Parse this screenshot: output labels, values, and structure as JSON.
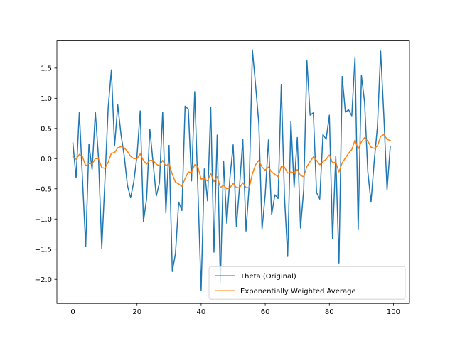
{
  "chart_data": {
    "type": "line",
    "title": "",
    "xlabel": "",
    "ylabel": "",
    "xlim": [
      -5,
      105
    ],
    "ylim": [
      -2.4,
      1.95
    ],
    "x_ticks": [
      0,
      20,
      40,
      60,
      80,
      100
    ],
    "y_ticks": [
      -2.0,
      -1.5,
      -1.0,
      -0.5,
      0.0,
      0.5,
      1.0,
      1.5
    ],
    "x_tick_labels": [
      "0",
      "20",
      "40",
      "60",
      "80",
      "100"
    ],
    "y_tick_labels": [
      "−2.0",
      "−1.5",
      "−1.0",
      "−0.5",
      "0.0",
      "0.5",
      "1.0",
      "1.5"
    ],
    "grid": false,
    "legend_position": "lower-right",
    "series": [
      {
        "name": "Theta (Original)",
        "color": "#1f77b4",
        "values": [
          0.26,
          -0.32,
          0.77,
          -0.35,
          -1.46,
          0.24,
          -0.18,
          0.77,
          0.0,
          -1.49,
          -0.35,
          0.84,
          1.47,
          0.21,
          0.89,
          0.4,
          0.05,
          -0.44,
          -0.65,
          -0.38,
          0.05,
          0.79,
          -1.04,
          -0.66,
          0.49,
          -0.06,
          -0.62,
          -0.4,
          0.77,
          -0.9,
          0.22,
          -1.87,
          -1.57,
          -0.72,
          -0.86,
          0.87,
          0.82,
          -0.37,
          1.11,
          -0.52,
          -2.18,
          -0.17,
          -0.7,
          0.85,
          -1.55,
          0.39,
          -2.05,
          -0.04,
          -1.07,
          -0.31,
          0.23,
          -1.13,
          -0.45,
          0.32,
          -1.2,
          -0.44,
          1.8,
          1.21,
          0.58,
          -1.17,
          -0.59,
          0.31,
          -0.93,
          -0.6,
          -0.66,
          1.23,
          -0.64,
          -1.62,
          0.62,
          -0.47,
          0.35,
          -1.15,
          -0.51,
          1.62,
          0.72,
          0.76,
          -0.56,
          -0.67,
          0.4,
          0.32,
          0.72,
          -1.33,
          0.04,
          -1.73,
          1.36,
          0.77,
          0.81,
          0.71,
          1.68,
          -1.18,
          1.38,
          0.93,
          -0.22,
          -0.72,
          -0.04,
          0.53,
          1.78,
          0.71,
          -0.52,
          0.2
        ]
      },
      {
        "name": "Exponentially Weighted Average",
        "color": "#ff7f0e",
        "values": [
          0.03,
          -0.01,
          0.07,
          0.03,
          -0.12,
          -0.08,
          -0.09,
          0.0,
          0.0,
          -0.15,
          -0.16,
          -0.06,
          0.09,
          0.1,
          0.18,
          0.2,
          0.18,
          0.12,
          0.04,
          0.0,
          0.0,
          0.08,
          -0.03,
          -0.09,
          -0.03,
          -0.03,
          -0.09,
          -0.12,
          -0.03,
          -0.12,
          -0.08,
          -0.26,
          -0.39,
          -0.42,
          -0.46,
          -0.33,
          -0.22,
          -0.23,
          -0.1,
          -0.14,
          -0.34,
          -0.33,
          -0.37,
          -0.25,
          -0.38,
          -0.3,
          -0.48,
          -0.44,
          -0.5,
          -0.48,
          -0.41,
          -0.48,
          -0.48,
          -0.4,
          -0.48,
          -0.48,
          -0.25,
          -0.1,
          -0.03,
          -0.14,
          -0.19,
          -0.14,
          -0.22,
          -0.26,
          -0.3,
          -0.13,
          -0.14,
          -0.24,
          -0.22,
          -0.24,
          -0.18,
          -0.28,
          -0.3,
          -0.13,
          -0.05,
          0.03,
          -0.03,
          -0.1,
          -0.05,
          -0.01,
          0.06,
          -0.07,
          -0.06,
          -0.22,
          -0.07,
          0.01,
          0.09,
          0.15,
          0.31,
          0.16,
          0.28,
          0.35,
          0.29,
          0.19,
          0.17,
          0.21,
          0.37,
          0.4,
          0.32,
          0.3
        ]
      }
    ]
  }
}
